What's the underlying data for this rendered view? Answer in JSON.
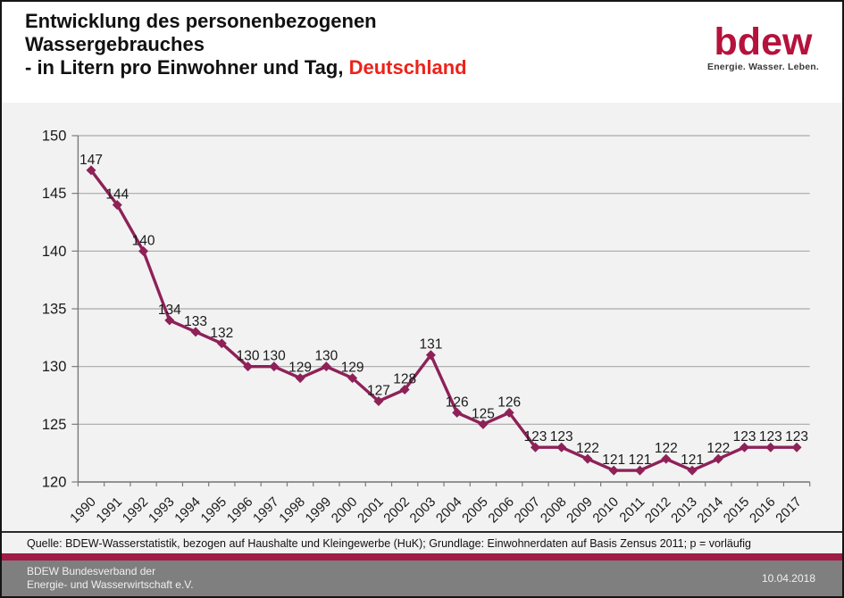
{
  "header": {
    "title_line1": "Entwicklung des personenbezogenen",
    "title_line2": "Wassergebrauches",
    "title_line3_prefix": "- in Litern pro Einwohner und Tag, ",
    "title_line3_highlight": "Deutschland",
    "logo_text": "bdew",
    "logo_tagline": "Energie. Wasser. Leben."
  },
  "chart_data": {
    "type": "line",
    "title": "Entwicklung des personenbezogenen Wassergebrauches - in Litern pro Einwohner und Tag, Deutschland",
    "categories": [
      1990,
      1991,
      1992,
      1993,
      1994,
      1995,
      1996,
      1997,
      1998,
      1999,
      2000,
      2001,
      2002,
      2003,
      2004,
      2005,
      2006,
      2007,
      2008,
      2009,
      2010,
      2011,
      2012,
      2013,
      2014,
      2015,
      2016,
      2017
    ],
    "values": [
      147,
      144,
      140,
      134,
      133,
      132,
      130,
      130,
      129,
      130,
      129,
      127,
      128,
      131,
      126,
      125,
      126,
      123,
      123,
      122,
      121,
      121,
      122,
      121,
      122,
      123,
      123,
      123
    ],
    "unit": "Liter pro Einwohner und Tag",
    "ylim": [
      120,
      150
    ],
    "yticks": [
      120,
      125,
      130,
      135,
      140,
      145,
      150
    ],
    "grid": true,
    "legend": "none",
    "marker": "diamond",
    "data_labels": true
  },
  "source_note": "Quelle: BDEW-Wasserstatistik, bezogen auf Haushalte und Kleingewerbe (HuK); Grundlage: Einwohnerdaten auf Basis Zensus 2011; p = vorläufig",
  "footer": {
    "org_line1": "BDEW Bundesverband der",
    "org_line2": "Energie- und Wasserwirtschaft e.V.",
    "date": "10.04.2018"
  },
  "colors": {
    "line": "#8e2158",
    "highlight_red": "#ee2219",
    "logo_red": "#b5123c",
    "accent_bar": "#a01d45",
    "footer_gray": "#7f7f7f",
    "plot_bg": "#f2f2f2",
    "grid": "#a8a8a8",
    "axis": "#7a7a7a",
    "text": "#1a1a1a"
  }
}
